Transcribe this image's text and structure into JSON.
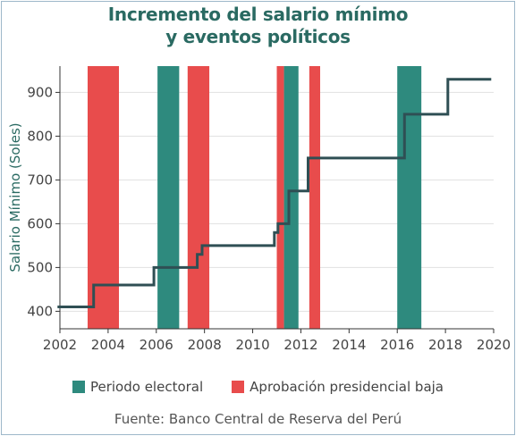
{
  "chart_data": {
    "type": "line",
    "title_lines": [
      "Incremento del salario mínimo",
      "y eventos políticos"
    ],
    "ylabel": "Salario Mínimo (Soles)",
    "xlabel": "",
    "xlim": [
      2002,
      2020
    ],
    "ylim": [
      360,
      960
    ],
    "x_ticks": [
      2002,
      2004,
      2006,
      2008,
      2010,
      2012,
      2014,
      2016,
      2018,
      2020
    ],
    "y_ticks": [
      400,
      500,
      600,
      700,
      800,
      900
    ],
    "grid": "horizontal",
    "legend_position": "bottom",
    "series": [
      {
        "type": "step-line",
        "color": "#2f4f54",
        "points": [
          [
            2001.9,
            410
          ],
          [
            2003.4,
            410
          ],
          [
            2003.4,
            460
          ],
          [
            2005.9,
            460
          ],
          [
            2005.9,
            500
          ],
          [
            2007.7,
            500
          ],
          [
            2007.7,
            530
          ],
          [
            2007.9,
            530
          ],
          [
            2007.9,
            550
          ],
          [
            2010.9,
            550
          ],
          [
            2010.9,
            580
          ],
          [
            2011.05,
            580
          ],
          [
            2011.05,
            600
          ],
          [
            2011.5,
            600
          ],
          [
            2011.5,
            675
          ],
          [
            2012.3,
            675
          ],
          [
            2012.3,
            750
          ],
          [
            2016.3,
            750
          ],
          [
            2016.3,
            850
          ],
          [
            2018.1,
            850
          ],
          [
            2018.1,
            930
          ],
          [
            2019.9,
            930
          ]
        ]
      }
    ],
    "bands": [
      {
        "start": 2003.15,
        "end": 2004.45,
        "category": "low"
      },
      {
        "start": 2006.05,
        "end": 2006.95,
        "category": "electoral"
      },
      {
        "start": 2007.3,
        "end": 2008.2,
        "category": "low"
      },
      {
        "start": 2011.0,
        "end": 2011.3,
        "category": "low"
      },
      {
        "start": 2011.3,
        "end": 2011.9,
        "category": "electoral"
      },
      {
        "start": 2012.35,
        "end": 2012.8,
        "category": "low"
      },
      {
        "start": 2016.0,
        "end": 2017.0,
        "category": "electoral"
      }
    ],
    "legend": [
      {
        "key": "electoral",
        "label": "Periodo electoral",
        "color": "#2e8a7e"
      },
      {
        "key": "low",
        "label": "Aprobación presidencial baja",
        "color": "#e84c4c"
      }
    ],
    "source": "Fuente: Banco Central de Reserva del Perú"
  }
}
